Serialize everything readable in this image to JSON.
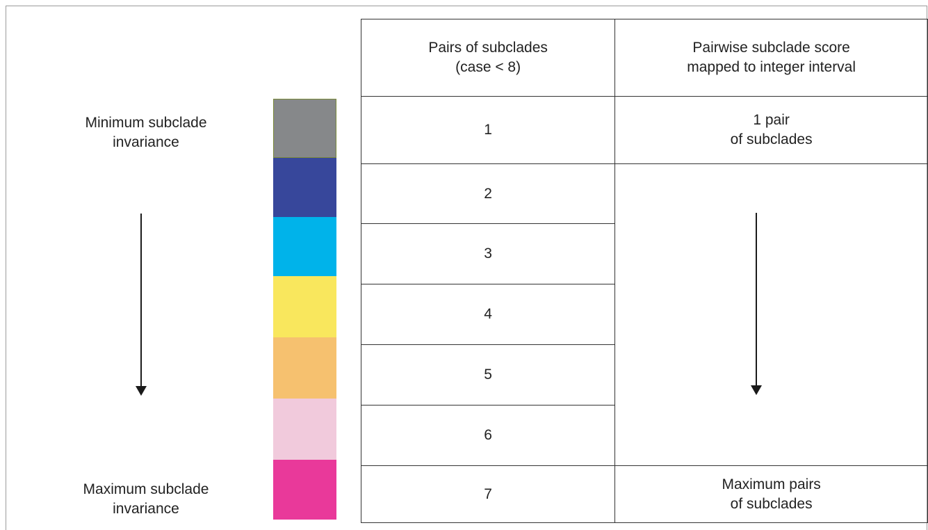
{
  "left": {
    "top_label": "Minimum subclade\ninvariance",
    "bottom_label": "Maximum subclade\ninvariance"
  },
  "scale": {
    "colors": [
      "#86888a",
      "#37479b",
      "#00b3ea",
      "#f9e75d",
      "#f6c16f",
      "#f1cadc",
      "#e9399a"
    ]
  },
  "table": {
    "header_pairs": "Pairs of subclades\n(case < 8)",
    "header_score": "Pairwise subclade score\nmapped to integer interval",
    "rows": [
      "1",
      "2",
      "3",
      "4",
      "5",
      "6",
      "7"
    ],
    "score_top": "1 pair\nof subclades",
    "score_bottom": "Maximum pairs\nof subclades"
  }
}
